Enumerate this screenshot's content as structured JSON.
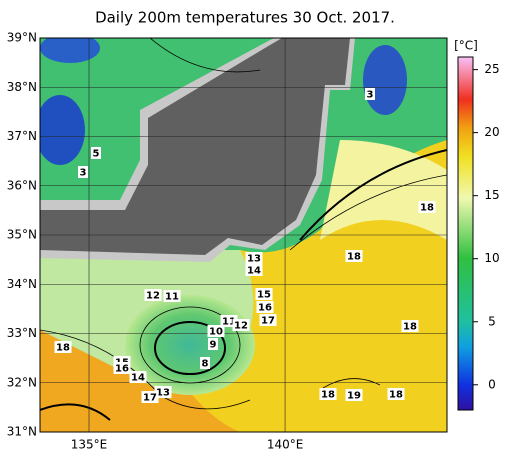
{
  "title": "Daily 200m temperatures 30 Oct. 2017.",
  "map": {
    "lonlim": [
      133.75,
      144.13
    ],
    "latlim": [
      31,
      39
    ],
    "lonticks": [
      {
        "value": 135,
        "label": "135°E"
      },
      {
        "value": 140,
        "label": "140°E"
      }
    ],
    "latticks": [
      {
        "value": 31,
        "label": "31°N"
      },
      {
        "value": 32,
        "label": "32°N"
      },
      {
        "value": 33,
        "label": "33°N"
      },
      {
        "value": 34,
        "label": "34°N"
      },
      {
        "value": 35,
        "label": "35°N"
      },
      {
        "value": 36,
        "label": "36°N"
      },
      {
        "value": 37,
        "label": "37°N"
      },
      {
        "value": 38,
        "label": "38°N"
      },
      {
        "value": 39,
        "label": "39°N"
      }
    ]
  },
  "colorbar": {
    "unit": "[°C]",
    "lim": [
      -2,
      26
    ],
    "ticks": [
      0,
      5,
      10,
      15,
      20,
      25
    ]
  },
  "contour_labels": [
    3,
    5,
    3,
    18,
    18,
    13,
    14,
    15,
    12,
    11,
    16,
    11,
    12,
    17,
    10,
    18,
    9,
    18,
    8,
    15,
    16,
    14,
    13,
    17,
    18,
    19,
    18
  ]
}
